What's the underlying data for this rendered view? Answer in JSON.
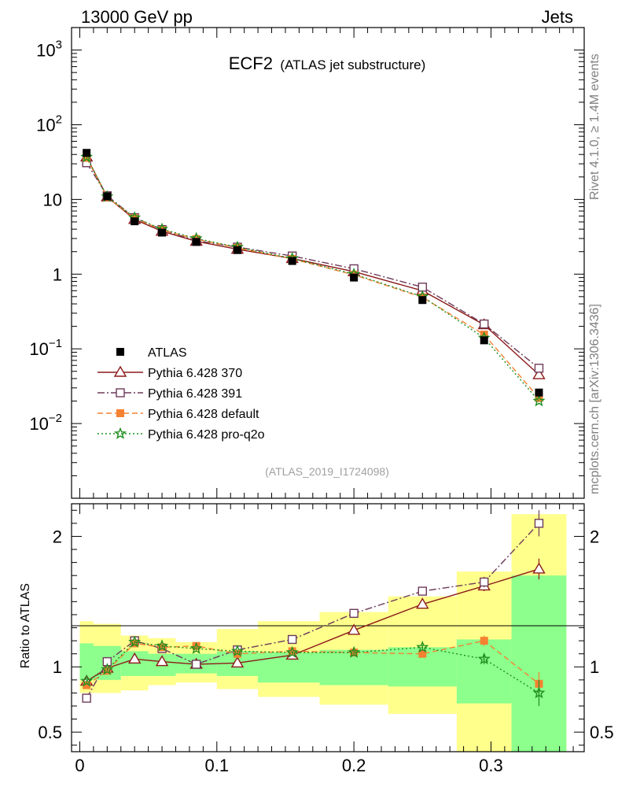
{
  "header": {
    "energy_label": "13000 GeV pp",
    "category_label": "Jets"
  },
  "side_labels": {
    "rivet": "Rivet 4.1.0, ≥ 1.4M events",
    "mcplots": "mcplots.cern.ch [arXiv:1306.3436]"
  },
  "chart_data": {
    "type": "line",
    "title_main": "ECF2",
    "title_sub": "(ATLAS jet substructure)",
    "analysis_id": "(ATLAS_2019_I1724098)",
    "x": [
      0.005,
      0.02,
      0.04,
      0.06,
      0.085,
      0.115,
      0.155,
      0.2,
      0.25,
      0.295,
      0.335
    ],
    "bin_edges": [
      0.0,
      0.01,
      0.03,
      0.05,
      0.07,
      0.1,
      0.13,
      0.175,
      0.225,
      0.275,
      0.315,
      0.355
    ],
    "xlim": [
      -0.006,
      0.368
    ],
    "x_ticks": [
      {
        "v": 0,
        "label": "0"
      },
      {
        "v": 0.1,
        "label": "0.1"
      },
      {
        "v": 0.2,
        "label": "0.2"
      },
      {
        "v": 0.3,
        "label": "0.3"
      }
    ],
    "main": {
      "yscale": "log",
      "ylim": [
        0.001,
        2000
      ],
      "y_ticks": [
        {
          "v": 1000,
          "base": "10",
          "exp": "3"
        },
        {
          "v": 100,
          "base": "10",
          "exp": "2"
        },
        {
          "v": 10,
          "base": "10",
          "exp": ""
        },
        {
          "v": 1,
          "base": "1",
          "exp": ""
        },
        {
          "v": 0.1,
          "base": "10",
          "exp": "−1"
        },
        {
          "v": 0.01,
          "base": "10",
          "exp": "−2"
        }
      ]
    },
    "ratio": {
      "ylabel": "Ratio to ATLAS",
      "ylim": [
        0.35,
        2.25
      ],
      "y_ticks": [
        {
          "v": 0.5,
          "label": "0.5"
        },
        {
          "v": 1,
          "label": "1"
        },
        {
          "v": 2,
          "label": "2"
        }
      ],
      "band_inner": [
        [
          0.9,
          1.18
        ],
        [
          0.9,
          1.16
        ],
        [
          0.93,
          1.12
        ],
        [
          0.93,
          1.1
        ],
        [
          0.95,
          1.1
        ],
        [
          0.93,
          1.12
        ],
        [
          0.88,
          1.11
        ],
        [
          0.86,
          1.13
        ],
        [
          0.85,
          1.15
        ],
        [
          0.72,
          1.21
        ],
        [
          0.35,
          1.7
        ]
      ],
      "band_outer": [
        [
          0.8,
          1.35
        ],
        [
          0.8,
          1.33
        ],
        [
          0.82,
          1.24
        ],
        [
          0.86,
          1.22
        ],
        [
          0.88,
          1.19
        ],
        [
          0.83,
          1.29
        ],
        [
          0.77,
          1.35
        ],
        [
          0.71,
          1.42
        ],
        [
          0.64,
          1.54
        ],
        [
          0.35,
          1.73
        ],
        [
          0.35,
          2.17
        ]
      ]
    },
    "series": [
      {
        "name": "ATLAS",
        "color": "#000000",
        "marker": "filled-square",
        "values": [
          42,
          11,
          5.1,
          3.6,
          2.7,
          2.1,
          1.5,
          0.9,
          0.45,
          0.13,
          0.026
        ],
        "ratio": [
          1,
          1,
          1,
          1,
          1,
          1,
          1,
          1,
          1,
          1,
          1
        ]
      },
      {
        "name": "Pythia 6.428 370",
        "color": "#8b1a1a",
        "marker": "open-triangle",
        "dash": "",
        "values": [
          37,
          10.8,
          5.4,
          3.75,
          2.75,
          2.15,
          1.62,
          1.08,
          0.6,
          0.21,
          0.045
        ],
        "ratio": [
          0.89,
          0.99,
          1.06,
          1.04,
          1.02,
          1.03,
          1.09,
          1.28,
          1.48,
          1.62,
          1.75
        ],
        "ratio_err": [
          0.02,
          0.01,
          0.01,
          0.01,
          0.01,
          0.01,
          0.01,
          0.02,
          0.02,
          0.04,
          0.08
        ]
      },
      {
        "name": "Pythia 6.428 391",
        "color": "#6e3a5a",
        "marker": "open-square",
        "dash": "9,3,2,3",
        "values": [
          31,
          11.2,
          5.7,
          3.95,
          2.8,
          2.3,
          1.75,
          1.18,
          0.67,
          0.215,
          0.055
        ],
        "ratio": [
          0.76,
          1.04,
          1.2,
          1.14,
          1.02,
          1.13,
          1.21,
          1.41,
          1.58,
          1.65,
          2.1
        ],
        "ratio_err": [
          0.02,
          0.01,
          0.01,
          0.01,
          0.01,
          0.01,
          0.01,
          0.02,
          0.02,
          0.04,
          0.1
        ]
      },
      {
        "name": "Pythia 6.428 default",
        "color": "#f58231",
        "marker": "filled-square",
        "dash": "7,4",
        "values": [
          36,
          10.7,
          5.6,
          3.9,
          2.95,
          2.25,
          1.6,
          0.98,
          0.49,
          0.155,
          0.022
        ],
        "ratio": [
          0.86,
          0.97,
          1.18,
          1.15,
          1.16,
          1.1,
          1.12,
          1.11,
          1.1,
          1.2,
          0.87
        ],
        "ratio_err": [
          0.02,
          0.01,
          0.01,
          0.01,
          0.01,
          0.01,
          0.01,
          0.02,
          0.02,
          0.04,
          0.09
        ]
      },
      {
        "name": "Pythia 6.428 pro-q2o",
        "color": "#1f8f1f",
        "marker": "star",
        "dash": "2,3",
        "values": [
          37,
          10.9,
          5.7,
          4.0,
          3.0,
          2.3,
          1.62,
          1.0,
          0.5,
          0.14,
          0.02
        ],
        "ratio": [
          0.89,
          0.98,
          1.19,
          1.16,
          1.14,
          1.12,
          1.11,
          1.11,
          1.15,
          1.06,
          0.8
        ],
        "ratio_err": [
          0.02,
          0.01,
          0.01,
          0.01,
          0.01,
          0.01,
          0.01,
          0.02,
          0.02,
          0.04,
          0.1
        ]
      }
    ]
  }
}
